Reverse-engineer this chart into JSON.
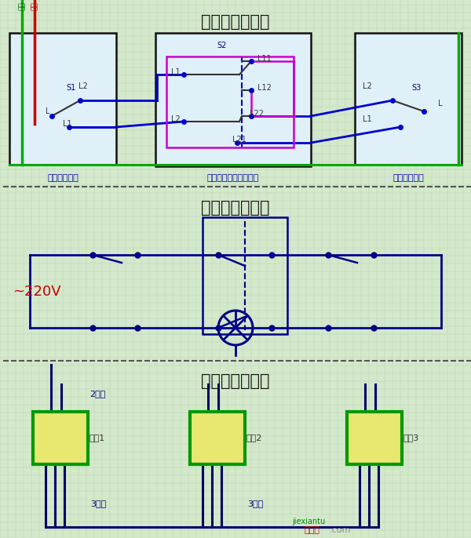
{
  "title1": "三控开关接线图",
  "title2": "三控开关原理图",
  "title3": "三控开关布线图",
  "label_sw1": "单开双控开关",
  "label_sw2": "中途开关（三控开关）",
  "label_sw3": "单开双控开关",
  "label_220v": "~220V",
  "label_2gen": "2根线",
  "label_3gen1": "3根线",
  "label_3gen2": "3根线",
  "label_kaiguan1": "开关1",
  "label_kaiguan2": "开关2",
  "label_kaiguan3": "开关3",
  "bg_color": "#d4e8cc",
  "grid_color": "#b8d4b0",
  "box_fill": "#dff0f8",
  "box_stroke": "#111111",
  "green_line": "#00aa00",
  "red_line": "#cc0000",
  "blue_line": "#0000cc",
  "blue_dark": "#000088",
  "magenta_line": "#cc00cc",
  "switch_green_border": "#009900",
  "switch_yellow_fill": "#e8e870",
  "watermark_red": "#cc0000",
  "watermark_green": "#008800"
}
